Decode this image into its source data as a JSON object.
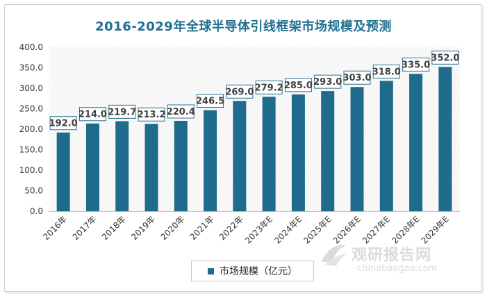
{
  "chart_data": {
    "type": "bar",
    "title": "2016-2029年全球半导体引线框架市场规模及预测",
    "categories": [
      "2016年",
      "2017年",
      "2018年",
      "2019年",
      "2020年",
      "2021年",
      "2022年",
      "2023年E",
      "2024年E",
      "2025年E",
      "2026年E",
      "2027年E",
      "2028年E",
      "2029年E"
    ],
    "series": [
      {
        "name": "市场规模（亿元）",
        "values": [
          192.0,
          214.0,
          219.7,
          213.2,
          220.4,
          246.5,
          269.0,
          279.2,
          285.0,
          293.0,
          303.0,
          318.0,
          335.0,
          352.0
        ]
      }
    ],
    "yticks": [
      "0.0",
      "50.0",
      "100.0",
      "150.0",
      "200.0",
      "250.0",
      "300.0",
      "350.0",
      "400.0"
    ],
    "ylim": [
      0,
      400
    ],
    "grid": false,
    "legend_position": "bottom",
    "colors": {
      "bar": "#1f6b8c",
      "title": "#1f6f8f",
      "label_border": "#2a6f8f"
    }
  },
  "watermark": {
    "cn": "观研报告网",
    "en": "chinabaogao.com"
  }
}
